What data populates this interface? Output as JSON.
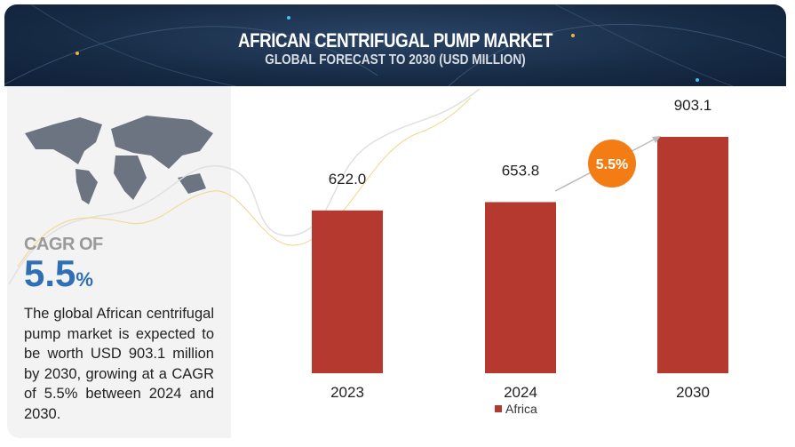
{
  "header": {
    "title": "AFRICAN CENTRIFUGAL PUMP MARKET",
    "subtitle": "GLOBAL FORECAST TO 2030 (USD MILLION)"
  },
  "sidebar": {
    "cagr_label": "CAGR OF",
    "cagr_value": "5.5",
    "cagr_unit": "%",
    "description": "The global African centrifugal pump market is expected to be worth USD 903.1 million by 2030, growing at a CAGR of 5.5% between 2024 and 2030."
  },
  "chart_data": {
    "type": "bar",
    "categories": [
      "2023",
      "2024",
      "2030"
    ],
    "series": [
      {
        "name": "Africa",
        "values": [
          622.0,
          653.8,
          903.1
        ]
      }
    ],
    "data_labels": [
      "622.0",
      "653.8",
      "903.1"
    ],
    "annotation": "5.5%",
    "legend": "bottom",
    "grid": false,
    "colors": {
      "bar": "#b5392f",
      "badge": "#f47c14"
    }
  }
}
